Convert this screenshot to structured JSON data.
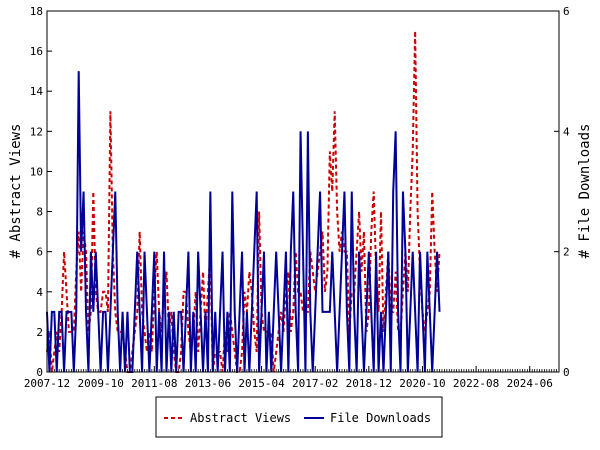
{
  "chart_data": {
    "type": "line",
    "ylabel": "# Abstract Views",
    "y2label": "# File Downloads",
    "ylim": [
      0,
      18
    ],
    "y2lim": [
      0,
      6
    ],
    "yticks": [
      0,
      2,
      4,
      6,
      8,
      10,
      12,
      14,
      16,
      18
    ],
    "y2ticks": [
      0,
      2,
      4,
      6
    ],
    "xticks": [
      "2007-12",
      "2009-10",
      "2011-08",
      "2013-06",
      "2015-04",
      "2017-02",
      "2018-12",
      "2020-10",
      "2022-08",
      "2024-06"
    ],
    "xrange": [
      "2007-12",
      "2025-06"
    ],
    "legend_position": "bottom",
    "series": [
      {
        "name": "Abstract Views",
        "axis": "left",
        "color": "#cc0000",
        "dash": true,
        "x_start": "2007-12",
        "values": [
          1,
          2,
          0,
          1,
          2,
          1,
          3,
          6,
          4,
          2,
          2,
          2,
          5,
          7,
          4,
          7,
          6,
          2,
          3,
          9,
          4,
          3,
          3,
          4,
          4,
          3,
          13,
          6,
          3,
          2,
          2,
          2,
          1,
          0,
          0,
          1,
          2,
          3,
          7,
          3,
          2,
          1,
          2,
          1,
          4,
          6,
          3,
          2,
          4,
          5,
          2,
          3,
          1,
          0,
          0,
          1,
          4,
          4,
          2,
          1,
          2,
          4,
          1,
          3,
          5,
          2,
          4,
          6,
          0,
          1,
          1,
          1,
          0,
          2,
          1,
          3,
          2,
          1,
          0,
          0,
          1,
          4,
          3,
          5,
          4,
          2,
          1,
          8,
          3,
          2,
          2,
          2,
          2,
          0,
          1,
          2,
          3,
          2,
          4,
          5,
          2,
          3,
          6,
          4,
          4,
          3,
          3,
          3,
          6,
          5,
          4,
          5,
          6,
          7,
          4,
          5,
          11,
          9,
          13,
          8,
          6,
          7,
          6,
          6,
          2,
          4,
          4,
          6,
          8,
          5,
          7,
          2,
          3,
          7,
          9,
          5,
          3,
          8,
          2,
          4,
          6,
          3,
          3,
          5,
          2,
          2,
          4,
          6,
          4,
          8,
          11,
          17,
          8,
          5,
          3,
          2,
          3,
          4,
          9,
          6,
          4,
          6
        ]
      },
      {
        "name": "File Downloads",
        "axis": "right",
        "color": "#000099",
        "dash": false,
        "x_start": "2007-12",
        "values": [
          1,
          0,
          1,
          1,
          0,
          1,
          1,
          0,
          1,
          1,
          1,
          0,
          1,
          5,
          2,
          3,
          1,
          0,
          2,
          1,
          2,
          1,
          0,
          1,
          1,
          0,
          1,
          2,
          3,
          1,
          0,
          1,
          0,
          1,
          0,
          0,
          1,
          2,
          1,
          0,
          2,
          1,
          0,
          1,
          2,
          0,
          1,
          0,
          2,
          0,
          1,
          0,
          1,
          0,
          1,
          1,
          0,
          1,
          2,
          0,
          1,
          0,
          2,
          1,
          0,
          1,
          0,
          3,
          0,
          1,
          0,
          1,
          2,
          0,
          1,
          0,
          3,
          1,
          0,
          1,
          2,
          0,
          1,
          0,
          1,
          2,
          3,
          0,
          1,
          2,
          0,
          1,
          0,
          1,
          2,
          1,
          0,
          1,
          2,
          0,
          2,
          3,
          1,
          0,
          4,
          2,
          0,
          4,
          1,
          0,
          1,
          2,
          3,
          1,
          1,
          1,
          1,
          2,
          1,
          0,
          1,
          2,
          3,
          1,
          0,
          3,
          1,
          0,
          2,
          1,
          0,
          1,
          2,
          1,
          0,
          2,
          0,
          1,
          0,
          1,
          2,
          0,
          3,
          4,
          1,
          0,
          3,
          2,
          0,
          1,
          2,
          1,
          0,
          2,
          1,
          0,
          2,
          1,
          0,
          1,
          2,
          1
        ]
      }
    ]
  }
}
